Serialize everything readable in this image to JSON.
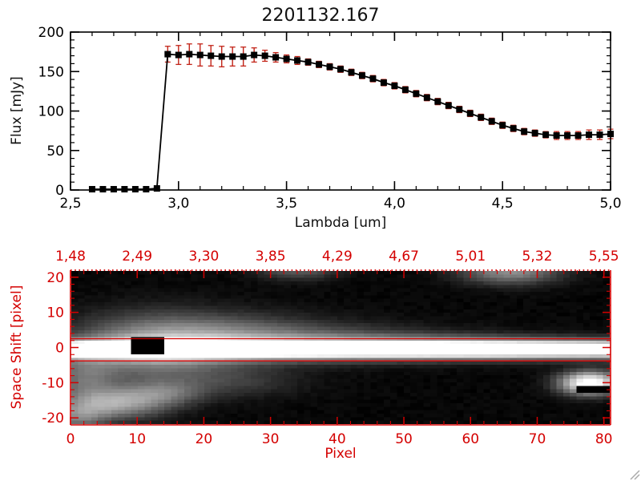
{
  "colors": {
    "axis_red": "#d40000",
    "error_red": "#c22418",
    "line_black": "#000000",
    "background": "#ffffff",
    "grip_gray": "#aaaaaa"
  },
  "icons": {
    "resize_grip": "diagonal-resize-grip"
  },
  "chart_data": [
    {
      "id": "flux_spectrum",
      "type": "line",
      "title": "2201132.167",
      "xlabel": "Lambda [um]",
      "ylabel": "Flux [mJy]",
      "xlim": [
        2.5,
        5.0
      ],
      "ylim": [
        0,
        200
      ],
      "grid": false,
      "marker": "square",
      "xticks": {
        "values": [
          2.5,
          3.0,
          3.5,
          4.0,
          4.5,
          5.0
        ],
        "labels": [
          "2,5",
          "3,0",
          "3,5",
          "4,0",
          "4,5",
          "5,0"
        ],
        "minor_step": 0.1
      },
      "yticks": {
        "values": [
          0,
          50,
          100,
          150,
          200
        ],
        "labels": [
          "0",
          "50",
          "100",
          "150",
          "200"
        ],
        "minor_step": 10
      },
      "x": [
        2.6,
        2.65,
        2.7,
        2.75,
        2.8,
        2.85,
        2.9,
        2.95,
        3.0,
        3.05,
        3.1,
        3.15,
        3.2,
        3.25,
        3.3,
        3.35,
        3.4,
        3.45,
        3.5,
        3.55,
        3.6,
        3.65,
        3.7,
        3.75,
        3.8,
        3.85,
        3.9,
        3.95,
        4.0,
        4.05,
        4.1,
        4.15,
        4.2,
        4.25,
        4.3,
        4.35,
        4.4,
        4.45,
        4.5,
        4.55,
        4.6,
        4.65,
        4.7,
        4.75,
        4.8,
        4.85,
        4.9,
        4.95,
        5.0
      ],
      "y": [
        1,
        1,
        1,
        1,
        1,
        1,
        2,
        172,
        171,
        172,
        171,
        170,
        169,
        169,
        169,
        171,
        170,
        168,
        166,
        164,
        162,
        159,
        156,
        153,
        149,
        145,
        141,
        136,
        132,
        127,
        122,
        117,
        112,
        107,
        102,
        97,
        92,
        87,
        82,
        78,
        74,
        72,
        70,
        69,
        69,
        69,
        70,
        70,
        71
      ],
      "yerr": [
        2,
        2,
        2,
        2,
        2,
        2,
        2,
        10,
        12,
        13,
        14,
        13,
        13,
        12,
        12,
        9,
        7,
        6,
        5,
        5,
        4,
        4,
        4,
        4,
        4,
        4,
        4,
        4,
        4,
        4,
        4,
        4,
        4,
        4,
        4,
        4,
        4,
        4,
        4,
        4,
        4,
        4,
        4,
        5,
        5,
        5,
        6,
        6,
        6
      ]
    },
    {
      "id": "spectral_image",
      "type": "heatmap",
      "xlabel": "Pixel",
      "ylabel": "Space Shift [pixel]",
      "xlim": [
        0,
        81
      ],
      "ylim": [
        -22,
        22
      ],
      "xticks": {
        "values": [
          0,
          10,
          20,
          30,
          40,
          50,
          60,
          70,
          80
        ],
        "labels": [
          "0",
          "10",
          "20",
          "30",
          "40",
          "50",
          "60",
          "70",
          "80"
        ],
        "minor_step": 2
      },
      "yticks": {
        "values": [
          20,
          10,
          0,
          -10,
          -20
        ],
        "labels": [
          "20",
          "10",
          "0",
          "-10",
          "-20"
        ],
        "minor_step": 2
      },
      "top_axis": {
        "labels": [
          "1,48",
          "2,49",
          "3,30",
          "3,85",
          "4,29",
          "4,67",
          "5,01",
          "5,32",
          "5,55"
        ],
        "positions": [
          0,
          10,
          20,
          30,
          40,
          50,
          60,
          70,
          80
        ]
      },
      "overlay_lines_y": [
        2.5,
        -3.8
      ],
      "grid": {
        "nx": 81,
        "ny": 44
      },
      "background": "#000000",
      "features": [
        {
          "kind": "stripe",
          "y": -0.5,
          "sy": 1.7,
          "amp": 1.35
        },
        {
          "kind": "blob",
          "x": 12,
          "y": 0,
          "sx": 8,
          "sy": 6,
          "amp": 0.55
        },
        {
          "kind": "blob",
          "x": 24,
          "y": 2.5,
          "sx": 9,
          "sy": 4.5,
          "amp": 0.35
        },
        {
          "kind": "blob",
          "x": 38,
          "y": 1.5,
          "sx": 11,
          "sy": 3.5,
          "amp": 0.25
        },
        {
          "kind": "blob",
          "x": 52,
          "y": 0.5,
          "sx": 12,
          "sy": 2.6,
          "amp": 0.18
        },
        {
          "kind": "blob",
          "x": 65,
          "y": 0,
          "sx": 10,
          "sy": 2.2,
          "amp": 0.13
        },
        {
          "kind": "blob",
          "x": 7,
          "y": -16,
          "sx": 5,
          "sy": 3,
          "amp": 0.55
        },
        {
          "kind": "blob",
          "x": 2,
          "y": -9,
          "sx": 3.5,
          "sy": 5,
          "amp": 0.3
        },
        {
          "kind": "blob",
          "x": 1,
          "y": -20,
          "sx": 3,
          "sy": 3,
          "amp": 0.35
        },
        {
          "kind": "blob",
          "x": 14,
          "y": -13,
          "sx": 4,
          "sy": 2.5,
          "amp": 0.3
        },
        {
          "kind": "blob",
          "x": 24,
          "y": -10,
          "sx": 7,
          "sy": 3,
          "amp": 0.15
        },
        {
          "kind": "blob",
          "x": 78,
          "y": -10.2,
          "sx": 3,
          "sy": 2.2,
          "amp": 1.1
        },
        {
          "kind": "blob",
          "x": 66,
          "y": 22,
          "sx": 5,
          "sy": 2.5,
          "amp": 0.5
        },
        {
          "kind": "blob",
          "x": 34,
          "y": 22.5,
          "sx": 4,
          "sy": 2,
          "amp": 0.3
        },
        {
          "kind": "mask",
          "x0": 8.7,
          "x1": 14,
          "y0": -2,
          "y1": 2.6
        },
        {
          "kind": "mask",
          "x0": 76.5,
          "x1": 80.5,
          "y0": -13,
          "y1": -11
        }
      ]
    }
  ]
}
